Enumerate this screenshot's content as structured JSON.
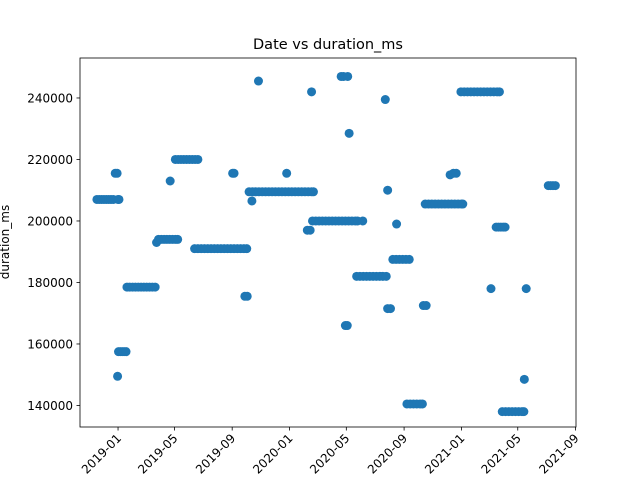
{
  "chart_data": {
    "type": "scatter",
    "title": "Date vs duration_ms",
    "xlabel": "",
    "ylabel": "duration_ms",
    "xlim": [
      "2018-10-12",
      "2021-09-02"
    ],
    "ylim": [
      133000,
      253000
    ],
    "grid": false,
    "marker_color": "#1f77b4",
    "x_ticks": [
      "2019-01",
      "2019-05",
      "2019-09",
      "2020-01",
      "2020-05",
      "2020-09",
      "2021-01",
      "2021-05",
      "2021-09"
    ],
    "y_ticks": [
      140000,
      160000,
      180000,
      200000,
      220000,
      240000
    ],
    "y_tick_labels": [
      "140000",
      "160000",
      "180000",
      "200000",
      "220000",
      "240000"
    ],
    "series": [
      {
        "points": [
          [
            "2018-11-17",
            207000
          ],
          [
            "2018-11-22",
            207000
          ],
          [
            "2018-11-27",
            207000
          ],
          [
            "2018-12-02",
            207000
          ],
          [
            "2018-12-07",
            207000
          ],
          [
            "2018-12-12",
            207000
          ],
          [
            "2018-12-17",
            207000
          ],
          [
            "2018-12-22",
            207000
          ],
          [
            "2018-12-26",
            215500
          ],
          [
            "2018-12-30",
            215500
          ],
          [
            "2019-01-01",
            207000
          ],
          [
            "2019-01-03",
            207000
          ],
          [
            "2018-12-31",
            149500
          ],
          [
            "2019-01-02",
            157500
          ],
          [
            "2019-01-06",
            157500
          ],
          [
            "2019-01-10",
            157500
          ],
          [
            "2019-01-14",
            157500
          ],
          [
            "2019-01-18",
            157500
          ],
          [
            "2019-01-20",
            178500
          ],
          [
            "2019-01-26",
            178500
          ],
          [
            "2019-02-01",
            178500
          ],
          [
            "2019-02-07",
            178500
          ],
          [
            "2019-02-13",
            178500
          ],
          [
            "2019-02-19",
            178500
          ],
          [
            "2019-02-25",
            178500
          ],
          [
            "2019-03-03",
            178500
          ],
          [
            "2019-03-09",
            178500
          ],
          [
            "2019-03-15",
            178500
          ],
          [
            "2019-03-21",
            178500
          ],
          [
            "2019-03-24",
            193000
          ],
          [
            "2019-03-28",
            194000
          ],
          [
            "2019-04-03",
            194000
          ],
          [
            "2019-04-09",
            194000
          ],
          [
            "2019-04-15",
            194000
          ],
          [
            "2019-04-21",
            194000
          ],
          [
            "2019-04-27",
            194000
          ],
          [
            "2019-05-03",
            194000
          ],
          [
            "2019-05-08",
            194000
          ],
          [
            "2019-04-22",
            213000
          ],
          [
            "2019-05-03",
            220000
          ],
          [
            "2019-05-09",
            220000
          ],
          [
            "2019-05-15",
            220000
          ],
          [
            "2019-05-21",
            220000
          ],
          [
            "2019-05-27",
            220000
          ],
          [
            "2019-06-02",
            220000
          ],
          [
            "2019-06-08",
            220000
          ],
          [
            "2019-06-14",
            220000
          ],
          [
            "2019-06-20",
            220000
          ],
          [
            "2019-06-13",
            191000
          ],
          [
            "2019-06-20",
            191000
          ],
          [
            "2019-06-27",
            191000
          ],
          [
            "2019-07-04",
            191000
          ],
          [
            "2019-07-11",
            191000
          ],
          [
            "2019-07-18",
            191000
          ],
          [
            "2019-07-25",
            191000
          ],
          [
            "2019-08-01",
            191000
          ],
          [
            "2019-08-08",
            191000
          ],
          [
            "2019-08-15",
            191000
          ],
          [
            "2019-08-22",
            191000
          ],
          [
            "2019-08-29",
            191000
          ],
          [
            "2019-09-05",
            191000
          ],
          [
            "2019-09-12",
            191000
          ],
          [
            "2019-09-19",
            191000
          ],
          [
            "2019-09-26",
            191000
          ],
          [
            "2019-10-02",
            191000
          ],
          [
            "2019-09-02",
            215500
          ],
          [
            "2019-09-05",
            215500
          ],
          [
            "2019-09-28",
            175500
          ],
          [
            "2019-10-03",
            175500
          ],
          [
            "2019-10-13",
            206500
          ],
          [
            "2019-10-07",
            209500
          ],
          [
            "2019-10-14",
            209500
          ],
          [
            "2019-10-21",
            209500
          ],
          [
            "2019-10-28",
            209500
          ],
          [
            "2019-11-04",
            209500
          ],
          [
            "2019-11-11",
            209500
          ],
          [
            "2019-11-18",
            209500
          ],
          [
            "2019-11-25",
            209500
          ],
          [
            "2019-12-02",
            209500
          ],
          [
            "2019-12-09",
            209500
          ],
          [
            "2019-12-16",
            209500
          ],
          [
            "2019-12-23",
            209500
          ],
          [
            "2019-12-30",
            209500
          ],
          [
            "2020-01-06",
            209500
          ],
          [
            "2020-01-13",
            209500
          ],
          [
            "2020-01-20",
            209500
          ],
          [
            "2020-01-27",
            209500
          ],
          [
            "2020-02-03",
            209500
          ],
          [
            "2020-02-10",
            209500
          ],
          [
            "2020-02-17",
            209500
          ],
          [
            "2020-02-21",
            209500
          ],
          [
            "2019-10-27",
            245500
          ],
          [
            "2019-12-26",
            215500
          ],
          [
            "2020-02-17",
            242000
          ],
          [
            "2020-02-08",
            197000
          ],
          [
            "2020-02-14",
            197000
          ],
          [
            "2020-02-19",
            200000
          ],
          [
            "2020-02-26",
            200000
          ],
          [
            "2020-03-04",
            200000
          ],
          [
            "2020-03-11",
            200000
          ],
          [
            "2020-03-18",
            200000
          ],
          [
            "2020-03-25",
            200000
          ],
          [
            "2020-04-01",
            200000
          ],
          [
            "2020-04-08",
            200000
          ],
          [
            "2020-04-15",
            200000
          ],
          [
            "2020-04-22",
            200000
          ],
          [
            "2020-04-29",
            200000
          ],
          [
            "2020-05-06",
            200000
          ],
          [
            "2020-05-13",
            200000
          ],
          [
            "2020-05-20",
            200000
          ],
          [
            "2020-05-25",
            200000
          ],
          [
            "2020-04-20",
            247000
          ],
          [
            "2020-04-25",
            247000
          ],
          [
            "2020-05-04",
            247000
          ],
          [
            "2020-05-07",
            228500
          ],
          [
            "2020-04-29",
            166000
          ],
          [
            "2020-05-03",
            166000
          ],
          [
            "2020-06-05",
            200000
          ],
          [
            "2020-05-23",
            182000
          ],
          [
            "2020-05-30",
            182000
          ],
          [
            "2020-06-06",
            182000
          ],
          [
            "2020-06-13",
            182000
          ],
          [
            "2020-06-20",
            182000
          ],
          [
            "2020-06-27",
            182000
          ],
          [
            "2020-07-04",
            182000
          ],
          [
            "2020-07-11",
            182000
          ],
          [
            "2020-07-18",
            182000
          ],
          [
            "2020-07-25",
            182000
          ],
          [
            "2020-07-23",
            239500
          ],
          [
            "2020-07-28",
            210000
          ],
          [
            "2020-07-28",
            171500
          ],
          [
            "2020-08-03",
            171500
          ],
          [
            "2020-08-16",
            199000
          ],
          [
            "2020-08-08",
            187500
          ],
          [
            "2020-08-15",
            187500
          ],
          [
            "2020-08-22",
            187500
          ],
          [
            "2020-08-29",
            187500
          ],
          [
            "2020-09-05",
            187500
          ],
          [
            "2020-09-12",
            187500
          ],
          [
            "2020-09-07",
            140500
          ],
          [
            "2020-09-14",
            140500
          ],
          [
            "2020-09-21",
            140500
          ],
          [
            "2020-09-28",
            140500
          ],
          [
            "2020-10-05",
            140500
          ],
          [
            "2020-10-10",
            140500
          ],
          [
            "2020-10-12",
            172500
          ],
          [
            "2020-10-18",
            172500
          ],
          [
            "2020-10-16",
            205500
          ],
          [
            "2020-10-23",
            205500
          ],
          [
            "2020-10-30",
            205500
          ],
          [
            "2020-11-06",
            205500
          ],
          [
            "2020-11-13",
            205500
          ],
          [
            "2020-11-20",
            205500
          ],
          [
            "2020-11-27",
            205500
          ],
          [
            "2020-12-04",
            205500
          ],
          [
            "2020-12-11",
            205500
          ],
          [
            "2020-12-18",
            205500
          ],
          [
            "2020-12-25",
            205500
          ],
          [
            "2021-01-01",
            205500
          ],
          [
            "2021-01-04",
            205500
          ],
          [
            "2020-12-08",
            215000
          ],
          [
            "2020-12-15",
            215500
          ],
          [
            "2020-12-21",
            215500
          ],
          [
            "2020-12-31",
            242000
          ],
          [
            "2021-01-07",
            242000
          ],
          [
            "2021-01-14",
            242000
          ],
          [
            "2021-01-21",
            242000
          ],
          [
            "2021-01-28",
            242000
          ],
          [
            "2021-02-04",
            242000
          ],
          [
            "2021-02-11",
            242000
          ],
          [
            "2021-02-18",
            242000
          ],
          [
            "2021-02-25",
            242000
          ],
          [
            "2021-03-04",
            242000
          ],
          [
            "2021-03-11",
            242000
          ],
          [
            "2021-03-18",
            242000
          ],
          [
            "2021-03-23",
            242000
          ],
          [
            "2021-03-05",
            178000
          ],
          [
            "2021-03-16",
            198000
          ],
          [
            "2021-03-21",
            198000
          ],
          [
            "2021-03-26",
            198000
          ],
          [
            "2021-03-31",
            198000
          ],
          [
            "2021-04-04",
            198000
          ],
          [
            "2021-03-29",
            138000
          ],
          [
            "2021-04-05",
            138000
          ],
          [
            "2021-04-12",
            138000
          ],
          [
            "2021-04-19",
            138000
          ],
          [
            "2021-04-26",
            138000
          ],
          [
            "2021-05-03",
            138000
          ],
          [
            "2021-05-10",
            138000
          ],
          [
            "2021-05-14",
            138000
          ],
          [
            "2021-05-15",
            148500
          ],
          [
            "2021-05-19",
            178000
          ],
          [
            "2021-07-05",
            211500
          ],
          [
            "2021-07-10",
            211500
          ],
          [
            "2021-07-15",
            211500
          ],
          [
            "2021-07-20",
            211500
          ]
        ]
      }
    ]
  }
}
